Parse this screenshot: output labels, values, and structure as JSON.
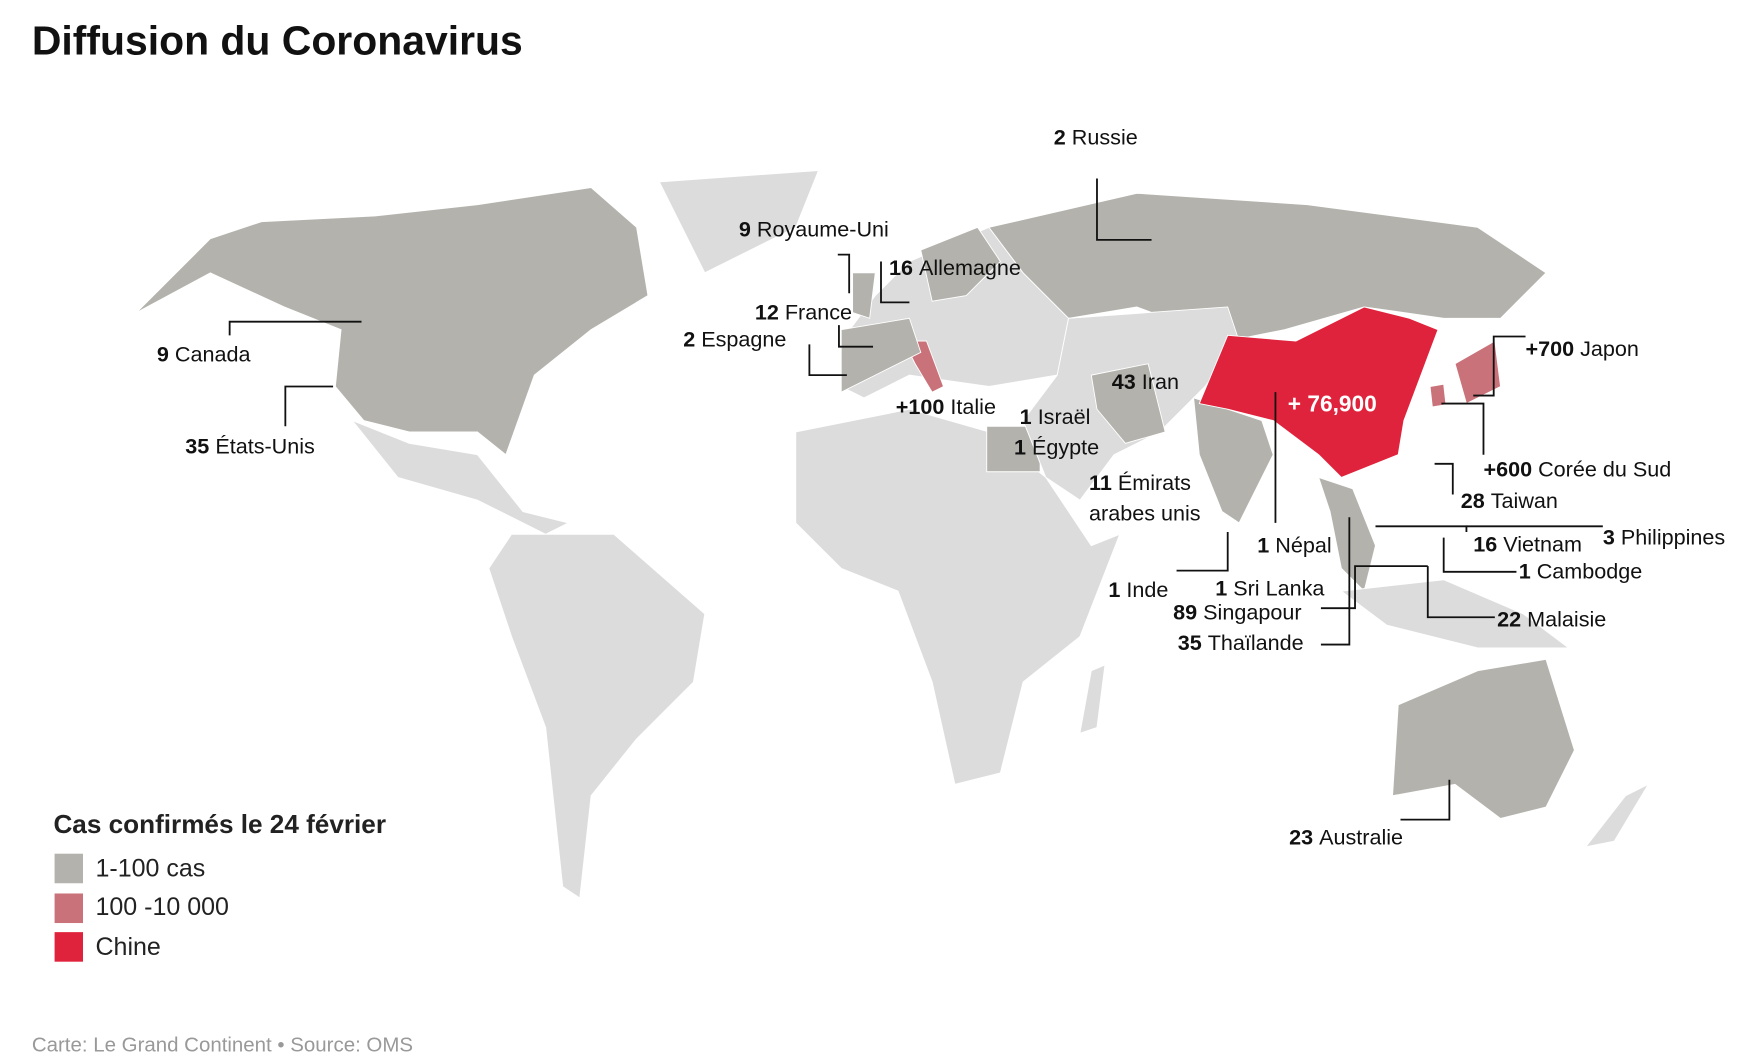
{
  "title": "Diffusion du Coronavirus",
  "legend": {
    "title": "Cas confirmés le 24 février",
    "items": [
      {
        "label": "1-100 cas",
        "color": "#b3b2ad"
      },
      {
        "label": "100 -10 000",
        "color": "#c9727a"
      },
      {
        "label": "Chine",
        "color": "#e0233c"
      }
    ]
  },
  "colors": {
    "no_cases": "#dcdcdc",
    "low": "#b3b2ad",
    "mid": "#c9727a",
    "china": "#e0233c"
  },
  "china_label": "+ 76,900",
  "labels": {
    "russie": {
      "num": "2",
      "name": "Russie"
    },
    "royaume_uni": {
      "num": "9",
      "name": "Royaume-Uni"
    },
    "allemagne": {
      "num": "16",
      "name": "Allemagne"
    },
    "france": {
      "num": "12",
      "name": "France"
    },
    "espagne": {
      "num": "2",
      "name": "Espagne"
    },
    "canada": {
      "num": "9",
      "name": "Canada"
    },
    "etats_unis": {
      "num": "35",
      "name": "États-Unis"
    },
    "italie": {
      "num": "+100",
      "name": "Italie"
    },
    "israel": {
      "num": "1",
      "name": "Israël"
    },
    "egypte": {
      "num": "1",
      "name": "Égypte"
    },
    "iran": {
      "num": "43",
      "name": "Iran"
    },
    "emirats": {
      "num": "11",
      "name": "Émirats",
      "name2": "arabes unis"
    },
    "japon": {
      "num": "+700",
      "name": "Japon"
    },
    "coree": {
      "num": "+600",
      "name": "Corée du Sud"
    },
    "taiwan": {
      "num": "28",
      "name": "Taiwan"
    },
    "vietnam": {
      "num": "16",
      "name": "Vietnam"
    },
    "philippines": {
      "num": "3",
      "name": "Philippines"
    },
    "cambodge": {
      "num": "1",
      "name": "Cambodge"
    },
    "nepal": {
      "num": "1",
      "name": "Népal"
    },
    "inde": {
      "num": "1",
      "name": "Inde"
    },
    "sri_lanka": {
      "num": "1",
      "name": "Sri Lanka"
    },
    "singapour": {
      "num": "89",
      "name": "Singapour"
    },
    "malaisie": {
      "num": "22",
      "name": "Malaisie"
    },
    "thailande": {
      "num": "35",
      "name": "Thaïlande"
    },
    "australie": {
      "num": "23",
      "name": "Australie"
    }
  },
  "credit": "Carte: Le Grand Continent • Source: OMS"
}
